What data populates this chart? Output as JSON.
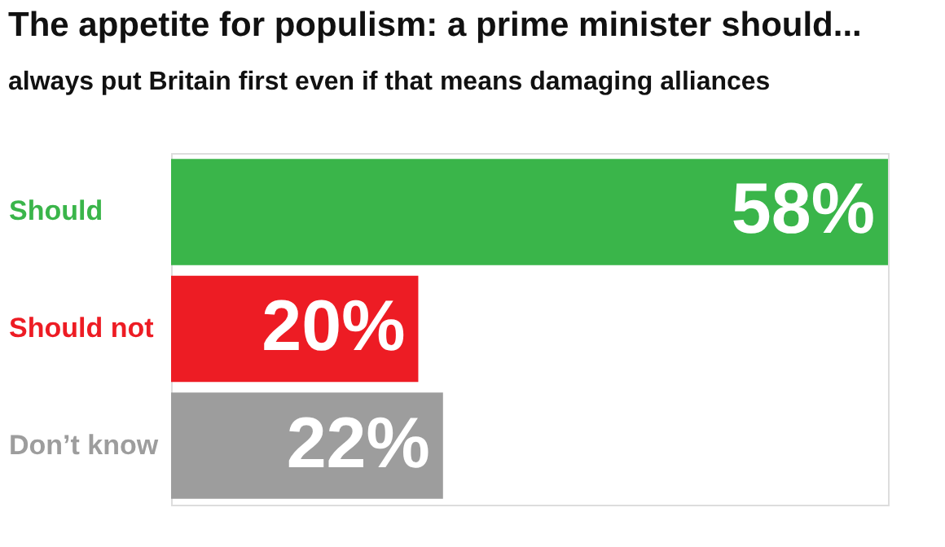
{
  "chart_data": {
    "type": "bar",
    "orientation": "horizontal",
    "title": "The appetite for populism: a prime minister should...",
    "subtitle": "always put Britain first even if that means damaging alliances",
    "categories": [
      "Should",
      "Should not",
      "Don’t know"
    ],
    "values": [
      58,
      20,
      22
    ],
    "colors": [
      "#3ab54a",
      "#ed1c24",
      "#9d9d9d"
    ],
    "value_labels": [
      "58%",
      "20%",
      "22%"
    ],
    "tick_labels": "y"
  }
}
